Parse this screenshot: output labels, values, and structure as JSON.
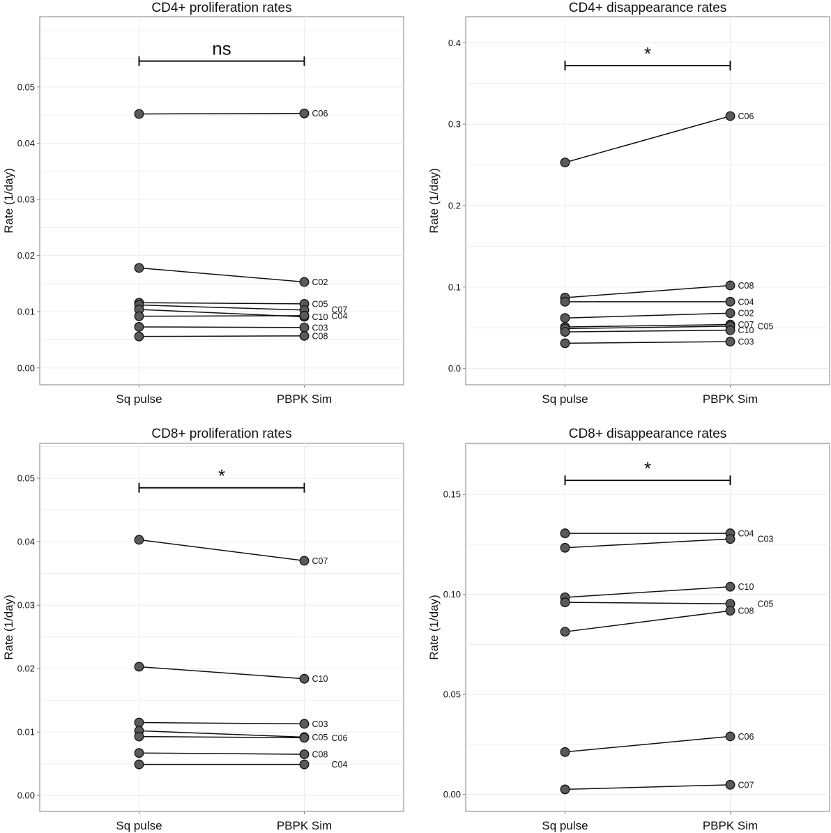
{
  "figure": {
    "y_axis_title": "Rate (1/day)",
    "x_categories": [
      "Sq pulse",
      "PBPK Sim"
    ]
  },
  "chart_data": [
    {
      "type": "line",
      "title": "CD4+ proliferation rates",
      "xlabel": "",
      "ylabel": "Rate (1/day)",
      "categories": [
        "Sq pulse",
        "PBPK Sim"
      ],
      "ylim": [
        -0.003,
        0.0625
      ],
      "yticks": [
        0,
        0.01,
        0.02,
        0.03,
        0.04,
        0.05
      ],
      "ytick_labels": [
        "0.00",
        "0.01",
        "0.02",
        "0.03",
        "0.04",
        "0.05"
      ],
      "significance": {
        "label": "ns",
        "y": 0.0546
      },
      "series": [
        {
          "name": "C06",
          "values": [
            0.0452,
            0.0453
          ],
          "label_offset": [
            0,
            0
          ]
        },
        {
          "name": "C02",
          "values": [
            0.0178,
            0.0153
          ],
          "label_offset": [
            0,
            0
          ]
        },
        {
          "name": "C05",
          "values": [
            0.0116,
            0.0114
          ],
          "label_offset": [
            0,
            0
          ]
        },
        {
          "name": "C07",
          "values": [
            0.0112,
            0.0103
          ],
          "label_offset": [
            28,
            -1
          ]
        },
        {
          "name": "C10",
          "values": [
            0.0104,
            0.0091
          ],
          "label_offset": [
            0,
            0
          ]
        },
        {
          "name": "C04",
          "values": [
            0.0092,
            0.0093
          ],
          "label_offset": [
            28,
            0
          ]
        },
        {
          "name": "C03",
          "values": [
            0.0073,
            0.0072
          ],
          "label_offset": [
            0,
            0
          ]
        },
        {
          "name": "C08",
          "values": [
            0.0056,
            0.0057
          ],
          "label_offset": [
            0,
            0
          ]
        }
      ]
    },
    {
      "type": "line",
      "title": "CD4+ disappearance rates",
      "xlabel": "",
      "ylabel": "Rate (1/day)",
      "categories": [
        "Sq pulse",
        "PBPK Sim"
      ],
      "ylim": [
        -0.02,
        0.432
      ],
      "yticks": [
        0,
        0.1,
        0.2,
        0.3,
        0.4
      ],
      "ytick_labels": [
        "0.0",
        "0.1",
        "0.2",
        "0.3",
        "0.4"
      ],
      "significance": {
        "label": "*",
        "y": 0.372
      },
      "series": [
        {
          "name": "C06",
          "values": [
            0.253,
            0.31
          ],
          "label_offset": [
            0,
            0
          ]
        },
        {
          "name": "C08",
          "values": [
            0.087,
            0.102
          ],
          "label_offset": [
            0,
            0
          ]
        },
        {
          "name": "C04",
          "values": [
            0.082,
            0.082
          ],
          "label_offset": [
            0,
            0
          ]
        },
        {
          "name": "C02",
          "values": [
            0.062,
            0.068
          ],
          "label_offset": [
            0,
            0
          ]
        },
        {
          "name": "C07",
          "values": [
            0.051,
            0.054
          ],
          "label_offset": [
            0,
            0
          ]
        },
        {
          "name": "C05",
          "values": [
            0.049,
            0.052
          ],
          "label_offset": [
            28,
            0
          ]
        },
        {
          "name": "C10",
          "values": [
            0.045,
            0.047
          ],
          "label_offset": [
            0,
            0
          ]
        },
        {
          "name": "C03",
          "values": [
            0.031,
            0.033
          ],
          "label_offset": [
            0,
            0
          ]
        }
      ]
    },
    {
      "type": "line",
      "title": "CD8+ proliferation rates",
      "xlabel": "",
      "ylabel": "Rate (1/day)",
      "categories": [
        "Sq pulse",
        "PBPK Sim"
      ],
      "ylim": [
        -0.0025,
        0.0555
      ],
      "yticks": [
        0,
        0.01,
        0.02,
        0.03,
        0.04,
        0.05
      ],
      "ytick_labels": [
        "0.00",
        "0.01",
        "0.02",
        "0.03",
        "0.04",
        "0.05"
      ],
      "significance": {
        "label": "*",
        "y": 0.0485
      },
      "series": [
        {
          "name": "C07",
          "values": [
            0.0403,
            0.037
          ],
          "label_offset": [
            0,
            0
          ]
        },
        {
          "name": "C10",
          "values": [
            0.0203,
            0.0184
          ],
          "label_offset": [
            0,
            0
          ]
        },
        {
          "name": "C03",
          "values": [
            0.0115,
            0.0113
          ],
          "label_offset": [
            0,
            0
          ]
        },
        {
          "name": "C05",
          "values": [
            0.0102,
            0.0092
          ],
          "label_offset": [
            0,
            0
          ]
        },
        {
          "name": "C06",
          "values": [
            0.0093,
            0.0091
          ],
          "label_offset": [
            28,
            0
          ]
        },
        {
          "name": "C08",
          "values": [
            0.0067,
            0.0065
          ],
          "label_offset": [
            0,
            0
          ]
        },
        {
          "name": "C04",
          "values": [
            0.0049,
            0.0049
          ],
          "label_offset": [
            28,
            0
          ]
        }
      ]
    },
    {
      "type": "line",
      "title": "CD8+ disappearance rates",
      "xlabel": "",
      "ylabel": "Rate (1/day)",
      "categories": [
        "Sq pulse",
        "PBPK Sim"
      ],
      "ylim": [
        -0.0085,
        0.1755
      ],
      "yticks": [
        0,
        0.05,
        0.1,
        0.15
      ],
      "ytick_labels": [
        "0.00",
        "0.05",
        "0.10",
        "0.15"
      ],
      "significance": {
        "label": "*",
        "y": 0.157
      },
      "series": [
        {
          "name": "C04",
          "values": [
            0.1305,
            0.1305
          ],
          "label_offset": [
            0,
            0
          ]
        },
        {
          "name": "C03",
          "values": [
            0.1233,
            0.1277
          ],
          "label_offset": [
            28,
            0
          ]
        },
        {
          "name": "C10",
          "values": [
            0.0985,
            0.1038
          ],
          "label_offset": [
            0,
            0
          ]
        },
        {
          "name": "C05",
          "values": [
            0.096,
            0.0953
          ],
          "label_offset": [
            28,
            0
          ]
        },
        {
          "name": "C08",
          "values": [
            0.0813,
            0.0918
          ],
          "label_offset": [
            0,
            0
          ]
        },
        {
          "name": "C06",
          "values": [
            0.0212,
            0.029
          ],
          "label_offset": [
            0,
            0
          ]
        },
        {
          "name": "C07",
          "values": [
            0.0025,
            0.0048
          ],
          "label_offset": [
            0,
            0
          ]
        }
      ]
    }
  ]
}
